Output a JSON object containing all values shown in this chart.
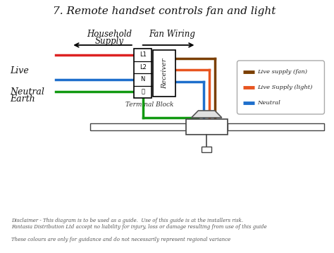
{
  "title": "7. Remote handset controls fan and light",
  "bg_color": "#ffffff",
  "label_live": "Live",
  "label_neutral": "Neutral",
  "label_earth": "Earth",
  "label_terminal": "Terminal Block",
  "label_household": "Household",
  "label_supply": "Supply",
  "label_fan_wiring": "Fan Wiring",
  "label_receiver": "Receiver",
  "legend_items": [
    {
      "label": "Live supply (fan)",
      "color": "#7B3F00"
    },
    {
      "label": "Live Supply (light)",
      "color": "#E85520"
    },
    {
      "label": "Neutral",
      "color": "#1E6FCC"
    }
  ],
  "wire_colors": {
    "live_in": "#DD2222",
    "neutral_in": "#1E6FCC",
    "earth_in": "#119911",
    "live_fan_out": "#7B3F00",
    "live_light_out": "#E85520",
    "neutral_out": "#1E6FCC",
    "earth_out": "#119911"
  },
  "disclaimer_lines": [
    "Disclaimer - This diagram is to be used as a guide.  Use of this guide is at the installers risk.",
    "Fantasia Distribution Ltd accept no liability for injury, loss or damage resulting from use of this guide",
    "",
    "These colours are only for guidance and do not necessarily represent regional variance"
  ]
}
